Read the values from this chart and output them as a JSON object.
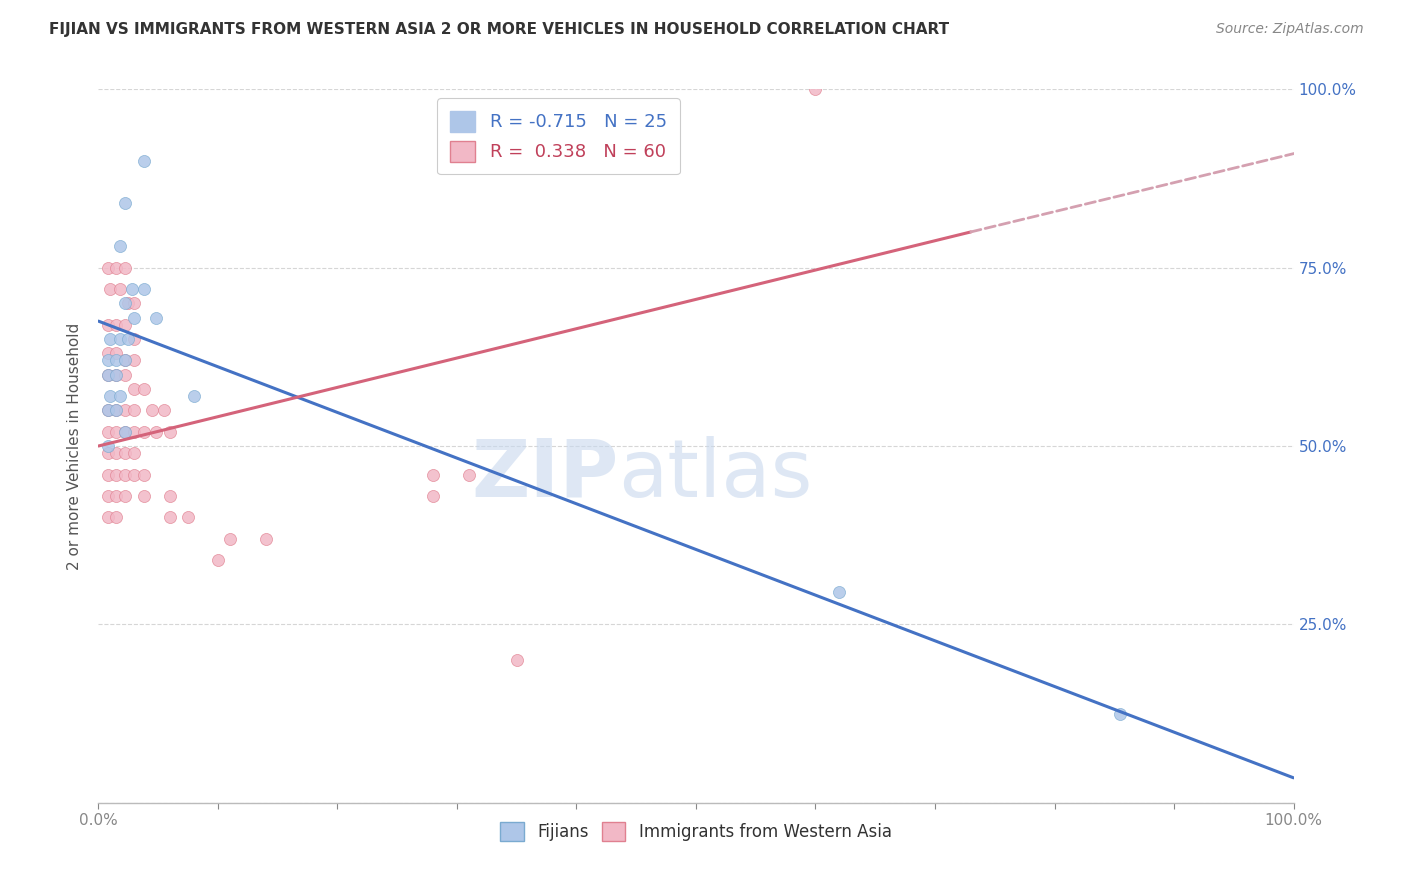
{
  "title": "FIJIAN VS IMMIGRANTS FROM WESTERN ASIA 2 OR MORE VEHICLES IN HOUSEHOLD CORRELATION CHART",
  "source": "Source: ZipAtlas.com",
  "ylabel": "2 or more Vehicles in Household",
  "xlim": [
    0.0,
    1.0
  ],
  "ylim": [
    0.0,
    1.0
  ],
  "fijian_points": [
    [
      0.022,
      0.84
    ],
    [
      0.038,
      0.9
    ],
    [
      0.018,
      0.78
    ],
    [
      0.028,
      0.72
    ],
    [
      0.038,
      0.72
    ],
    [
      0.022,
      0.7
    ],
    [
      0.03,
      0.68
    ],
    [
      0.048,
      0.68
    ],
    [
      0.01,
      0.65
    ],
    [
      0.018,
      0.65
    ],
    [
      0.025,
      0.65
    ],
    [
      0.008,
      0.62
    ],
    [
      0.015,
      0.62
    ],
    [
      0.022,
      0.62
    ],
    [
      0.008,
      0.6
    ],
    [
      0.015,
      0.6
    ],
    [
      0.01,
      0.57
    ],
    [
      0.018,
      0.57
    ],
    [
      0.008,
      0.55
    ],
    [
      0.015,
      0.55
    ],
    [
      0.022,
      0.52
    ],
    [
      0.008,
      0.5
    ],
    [
      0.08,
      0.57
    ],
    [
      0.62,
      0.295
    ],
    [
      0.855,
      0.125
    ]
  ],
  "western_asia_points": [
    [
      0.6,
      1.0
    ],
    [
      0.008,
      0.75
    ],
    [
      0.015,
      0.75
    ],
    [
      0.022,
      0.75
    ],
    [
      0.01,
      0.72
    ],
    [
      0.018,
      0.72
    ],
    [
      0.025,
      0.7
    ],
    [
      0.03,
      0.7
    ],
    [
      0.008,
      0.67
    ],
    [
      0.015,
      0.67
    ],
    [
      0.022,
      0.67
    ],
    [
      0.03,
      0.65
    ],
    [
      0.008,
      0.63
    ],
    [
      0.015,
      0.63
    ],
    [
      0.022,
      0.62
    ],
    [
      0.03,
      0.62
    ],
    [
      0.008,
      0.6
    ],
    [
      0.015,
      0.6
    ],
    [
      0.022,
      0.6
    ],
    [
      0.03,
      0.58
    ],
    [
      0.038,
      0.58
    ],
    [
      0.008,
      0.55
    ],
    [
      0.015,
      0.55
    ],
    [
      0.022,
      0.55
    ],
    [
      0.03,
      0.55
    ],
    [
      0.045,
      0.55
    ],
    [
      0.055,
      0.55
    ],
    [
      0.008,
      0.52
    ],
    [
      0.015,
      0.52
    ],
    [
      0.022,
      0.52
    ],
    [
      0.03,
      0.52
    ],
    [
      0.038,
      0.52
    ],
    [
      0.048,
      0.52
    ],
    [
      0.008,
      0.49
    ],
    [
      0.015,
      0.49
    ],
    [
      0.022,
      0.49
    ],
    [
      0.03,
      0.49
    ],
    [
      0.008,
      0.46
    ],
    [
      0.015,
      0.46
    ],
    [
      0.022,
      0.46
    ],
    [
      0.03,
      0.46
    ],
    [
      0.038,
      0.46
    ],
    [
      0.06,
      0.52
    ],
    [
      0.008,
      0.43
    ],
    [
      0.015,
      0.43
    ],
    [
      0.022,
      0.43
    ],
    [
      0.038,
      0.43
    ],
    [
      0.06,
      0.43
    ],
    [
      0.008,
      0.4
    ],
    [
      0.015,
      0.4
    ],
    [
      0.06,
      0.4
    ],
    [
      0.075,
      0.4
    ],
    [
      0.11,
      0.37
    ],
    [
      0.14,
      0.37
    ],
    [
      0.1,
      0.34
    ],
    [
      0.28,
      0.46
    ],
    [
      0.31,
      0.46
    ],
    [
      0.28,
      0.43
    ],
    [
      0.35,
      0.2
    ]
  ],
  "fijian_line": {
    "x": [
      0.0,
      1.0
    ],
    "y": [
      0.675,
      0.035
    ],
    "color": "#4472c4",
    "lw": 2.2
  },
  "western_asia_line": {
    "x": [
      0.0,
      0.73
    ],
    "y": [
      0.5,
      0.8
    ],
    "color": "#d4637a",
    "lw": 2.2
  },
  "western_asia_dash_line": {
    "x": [
      0.73,
      1.05
    ],
    "y": [
      0.8,
      0.93
    ],
    "color": "#d4a0b0",
    "lw": 2.0,
    "ls": "--"
  },
  "watermark_ZIP": "ZIP",
  "watermark_atlas": "atlas",
  "background_color": "#ffffff",
  "grid_color": "#cccccc",
  "point_size": 75,
  "fijian_color": "#aec6e8",
  "western_asia_color": "#f2b8c6",
  "fijian_edge": "#7aaad0",
  "western_asia_edge": "#e08090"
}
